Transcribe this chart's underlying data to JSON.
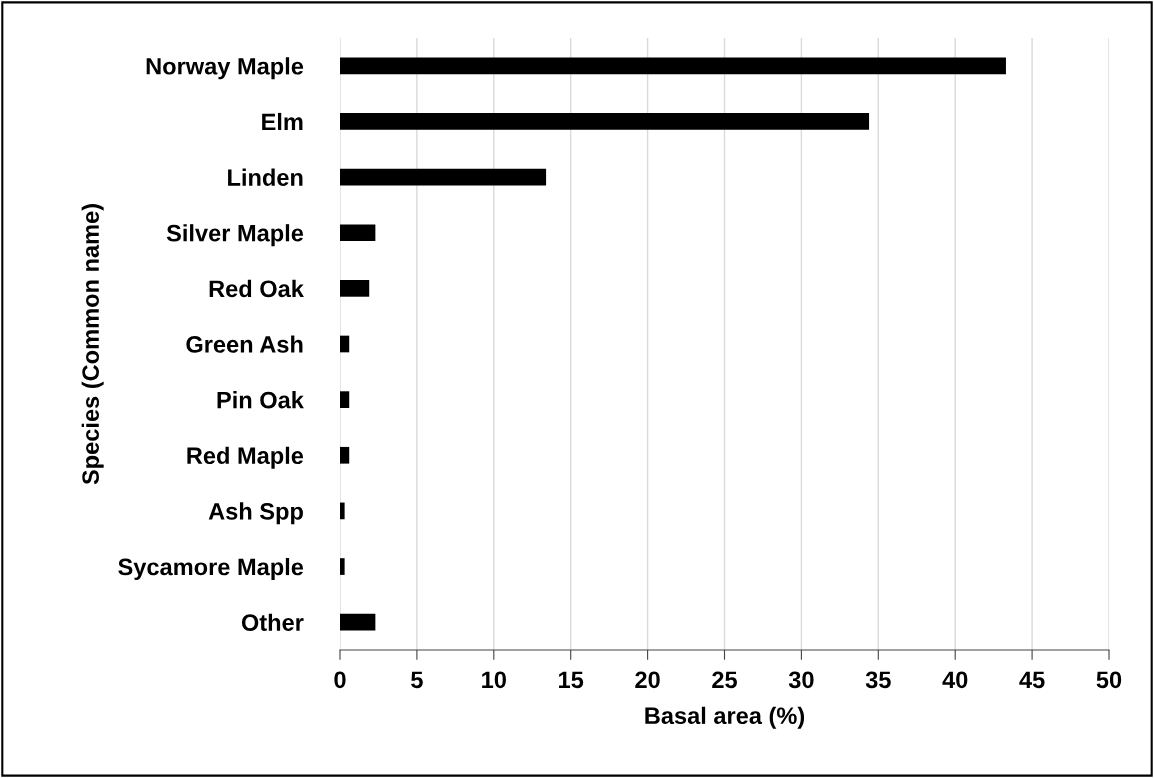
{
  "chart_data": {
    "type": "bar",
    "orientation": "horizontal",
    "xlabel": "Basal area (%)",
    "ylabel": "Species (Common name)",
    "categories": [
      "Norway Maple",
      "Elm",
      "Linden",
      "Silver Maple",
      "Red Oak",
      "Green Ash",
      "Pin Oak",
      "Red Maple",
      "Ash Spp",
      "Sycamore Maple",
      "Other"
    ],
    "values": [
      43.3,
      34.4,
      13.4,
      2.3,
      1.9,
      0.6,
      0.6,
      0.6,
      0.3,
      0.3,
      2.3
    ],
    "color": "#000000",
    "xlim": [
      0,
      50
    ],
    "xticks": [
      0,
      5,
      10,
      15,
      20,
      25,
      30,
      35,
      40,
      45,
      50
    ],
    "grid": "x",
    "legend": false
  }
}
